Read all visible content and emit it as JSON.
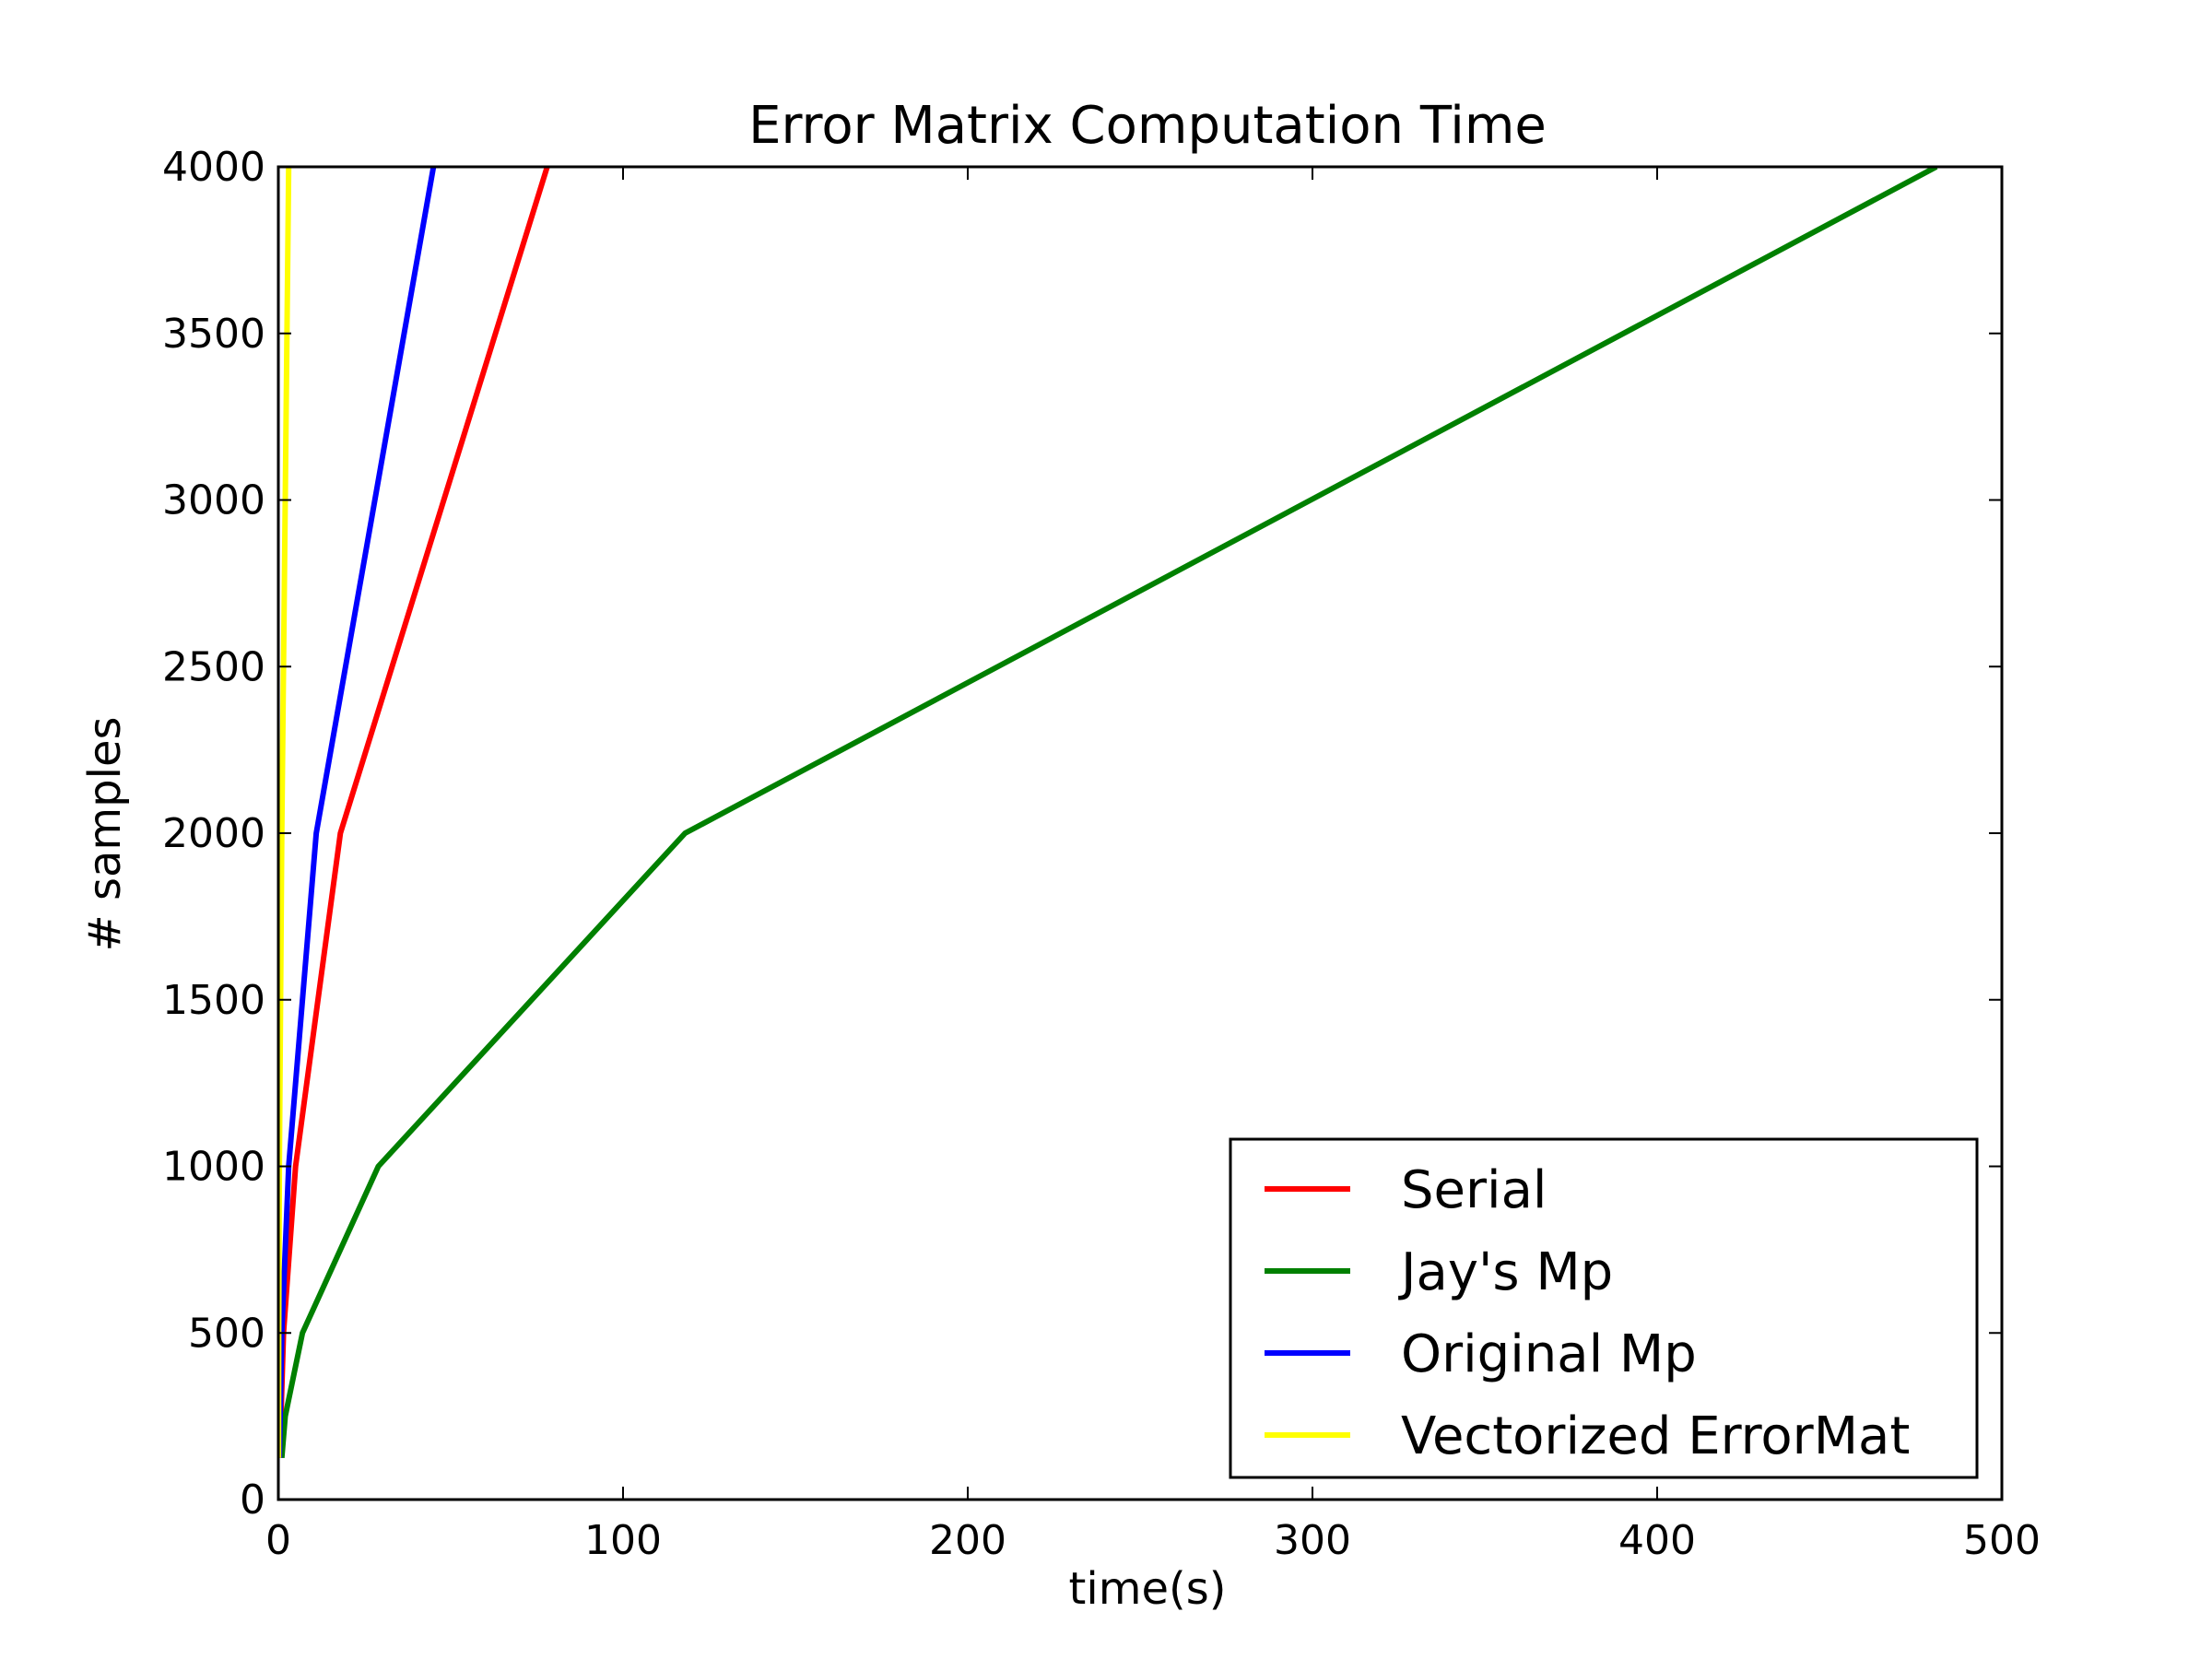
{
  "chart_data": {
    "type": "line",
    "title": "Error Matrix Computation Time",
    "xlabel": "time(s)",
    "ylabel": "# samples",
    "xlim": [
      0,
      500
    ],
    "ylim": [
      0,
      4000
    ],
    "xticks": [
      0,
      100,
      200,
      300,
      400,
      500
    ],
    "yticks": [
      0,
      500,
      1000,
      1500,
      2000,
      2500,
      3000,
      3500,
      4000
    ],
    "grid": false,
    "legend_position": "lower-right",
    "series": [
      {
        "name": "Serial",
        "color": "#ff0000",
        "x": [
          0.4,
          1.5,
          5,
          18,
          78
        ],
        "y": [
          125,
          500,
          1000,
          2000,
          4000
        ]
      },
      {
        "name": "Jay's Mp",
        "color": "#008000",
        "x": [
          1,
          2,
          7,
          29,
          118,
          481
        ],
        "y": [
          125,
          250,
          500,
          1000,
          2000,
          4000
        ]
      },
      {
        "name": "Original Mp",
        "color": "#0000ff",
        "x": [
          0.3,
          1,
          3,
          11,
          45
        ],
        "y": [
          125,
          500,
          1000,
          2000,
          4000
        ]
      },
      {
        "name": "Vectorized ErrorMat",
        "color": "#ffff00",
        "x": [
          0.05,
          0.1,
          0.3,
          1,
          3
        ],
        "y": [
          125,
          500,
          1000,
          2000,
          4000
        ]
      }
    ]
  }
}
